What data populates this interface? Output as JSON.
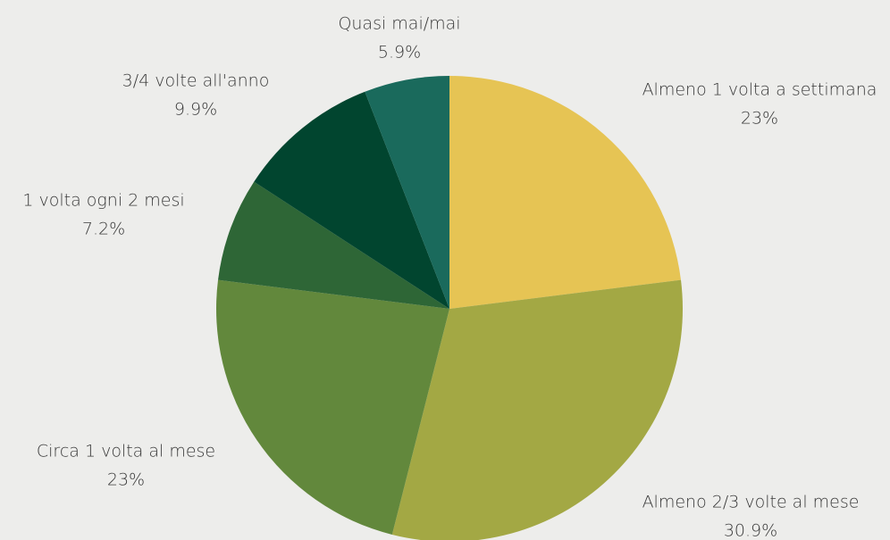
{
  "chart_data": {
    "type": "pie",
    "categories": [
      "Almeno 1 volta a settimana",
      "Almeno 2/3 volte al mese",
      "Circa 1 volta al mese",
      "1 volta ogni 2 mesi",
      "3/4 volte all'anno",
      "Quasi mai/mai"
    ],
    "values": [
      23,
      30.9,
      23,
      7.2,
      9.9,
      5.9
    ],
    "value_labels": [
      "23%",
      "30.9%",
      "23%",
      "7.2%",
      "9.9%",
      "5.9%"
    ],
    "colors": [
      "#e6c454",
      "#a3a844",
      "#62883c",
      "#2e6636",
      "#01452f",
      "#1a6a5c"
    ]
  }
}
